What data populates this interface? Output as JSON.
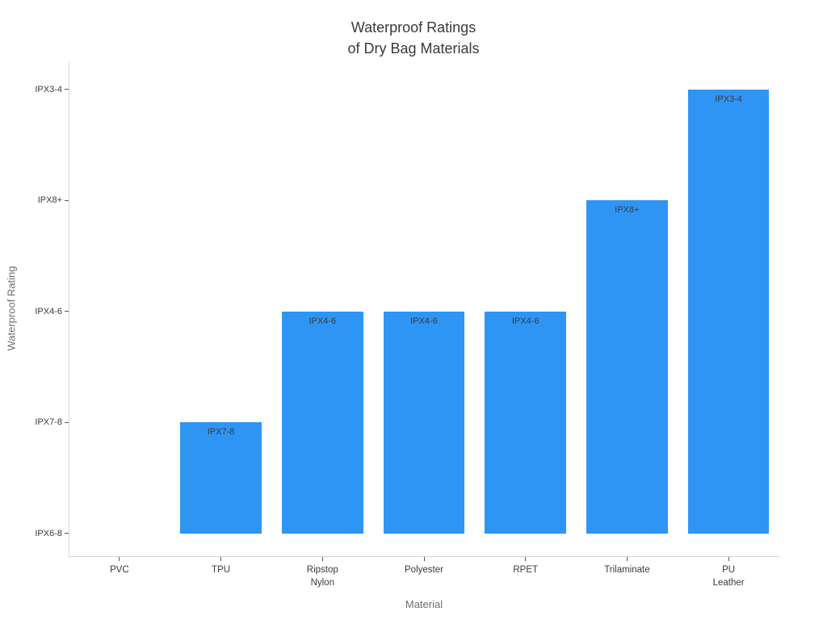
{
  "title_lines": [
    "Waterproof Ratings",
    "of Dry Bag Materials"
  ],
  "chart_data": {
    "type": "bar",
    "title": "Waterproof Ratings of Dry Bag Materials",
    "xlabel": "Material",
    "ylabel": "Waterproof Rating",
    "categories": [
      "PVC",
      "TPU",
      "Ripstop\nNylon",
      "Polyester",
      "RPET",
      "Trilaminate",
      "PU\nLeather"
    ],
    "y_tick_labels_bottom_to_top": [
      "IPX6-8",
      "IPX7-8",
      "IPX4-6",
      "IPX8+",
      "IPX3-4"
    ],
    "values": [
      "IPX6-8",
      "IPX7-8",
      "IPX4-6",
      "IPX4-6",
      "IPX4-6",
      "IPX8+",
      "IPX3-4"
    ],
    "value_levels": [
      0,
      1,
      2,
      2,
      2,
      3,
      4
    ],
    "bar_labels": [
      "",
      "IPX7-8",
      "IPX4-6",
      "IPX4-6",
      "IPX4-6",
      "IPX8+",
      "IPX3-4"
    ],
    "grid": false,
    "legend": null,
    "colors": {
      "bar": "#2e95f5",
      "bar_label": "#3a3a3a",
      "tick_label": "#3a3a3a",
      "axis_label": "#6e6e6e",
      "title": "#3a3a3a",
      "spine": "#d6d6d6",
      "background": "#ffffff"
    }
  }
}
